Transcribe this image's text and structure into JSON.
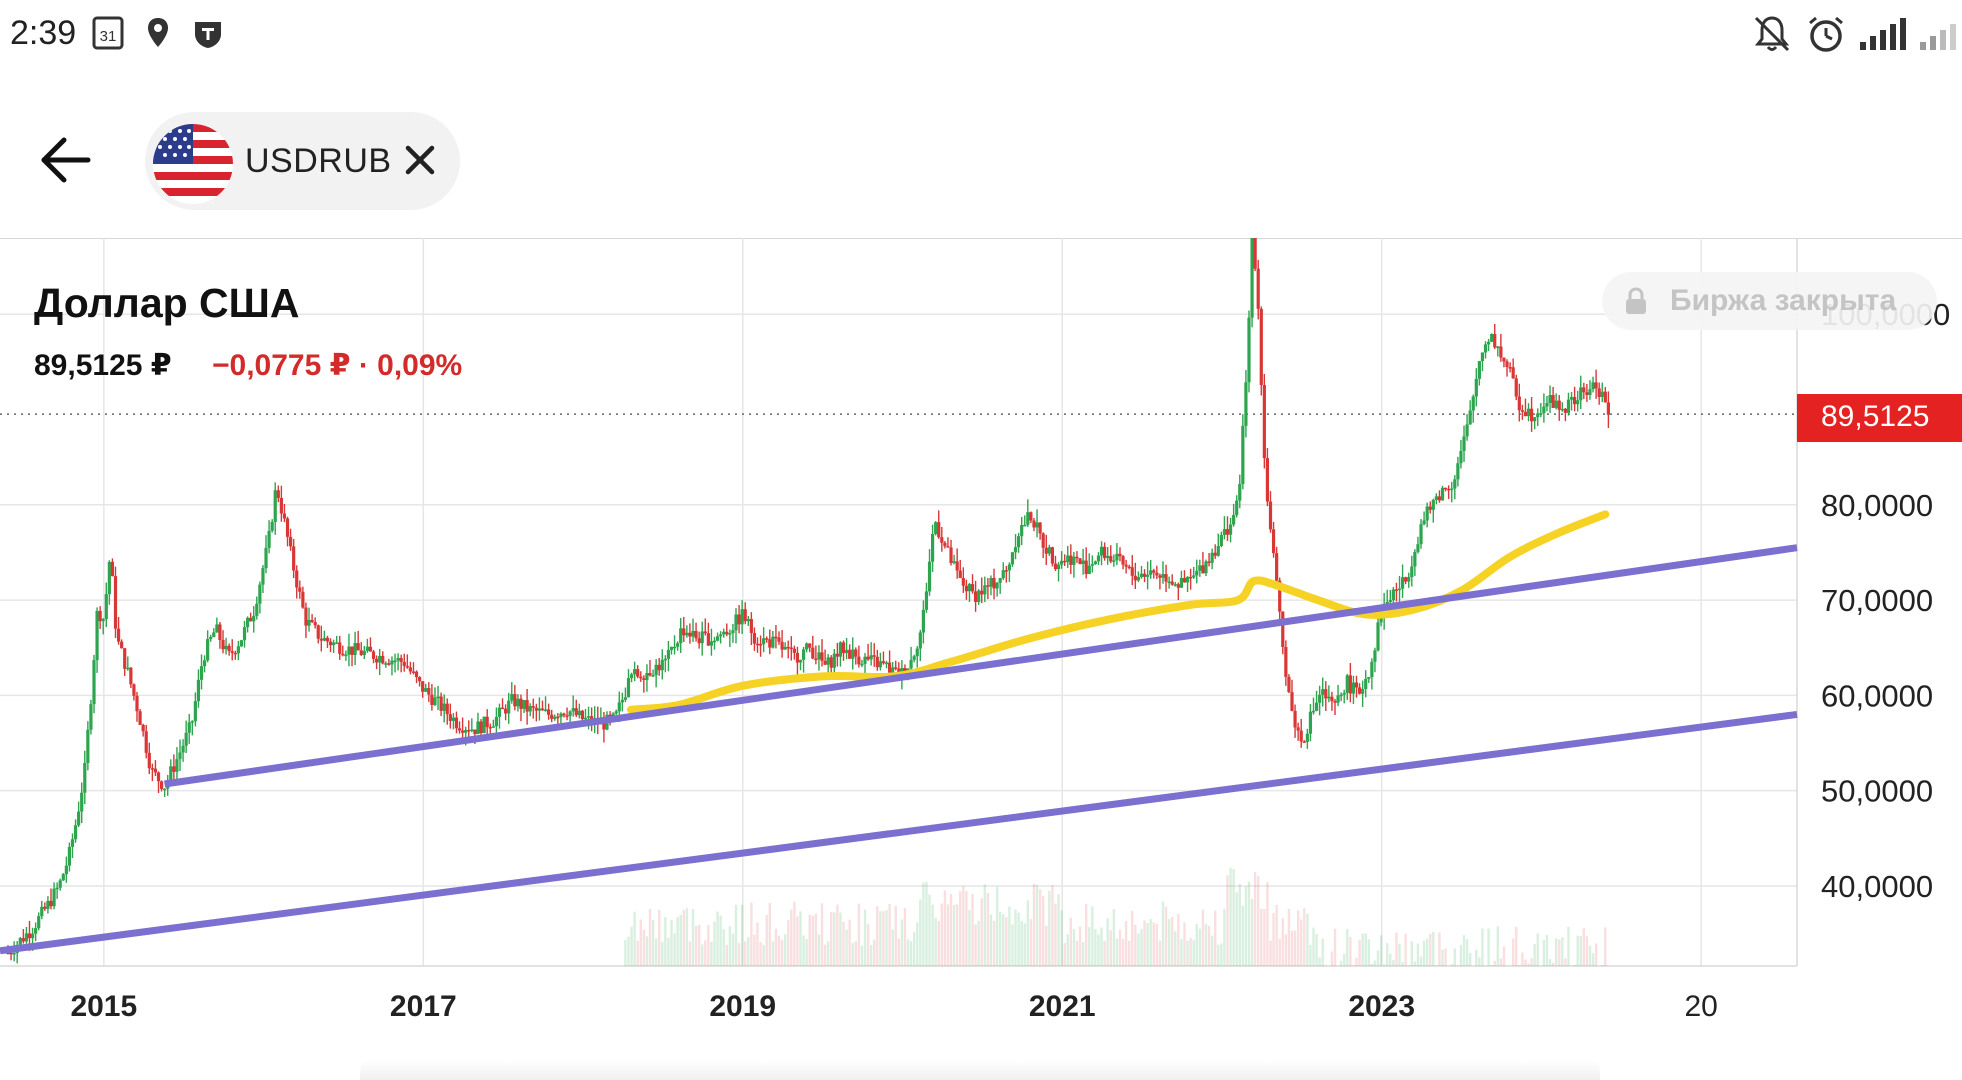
{
  "status_bar": {
    "time": "2:39",
    "calendar_day": "31",
    "icons_left": [
      "calendar-icon",
      "location-icon",
      "shield-app-icon"
    ],
    "icons_right": [
      "muted-bell-icon",
      "alarm-icon",
      "signal-icon",
      "signal-icon"
    ]
  },
  "header": {
    "back_icon": "arrow-left-icon",
    "ticker": "USDRUB",
    "flag": "us-flag-icon",
    "close_icon": "close-icon"
  },
  "quote": {
    "title": "Доллар США",
    "price": "89,5125 ₽",
    "change": "−0,0775 ₽ · 0,09%",
    "market_status": "Биржа закрыта",
    "current_price_tag": "89,5125"
  },
  "colors": {
    "up_candle": "#2da44e",
    "down_candle": "#d93636",
    "moving_average": "#f5d223",
    "trend_lines": "#7b6fd0",
    "price_tag": "#e52222",
    "change_text": "#d32a2a"
  },
  "chart_data": {
    "type": "candlestick",
    "x_axis": {
      "tick_labels": [
        "2015",
        "2017",
        "2019",
        "2021",
        "2023",
        "20"
      ],
      "xlim": [
        2014.35,
        2025.6
      ]
    },
    "y_axis": {
      "tick_labels": [
        "40,0000",
        "50,0000",
        "60,0000",
        "70,0000",
        "80,0000",
        "100,0000"
      ],
      "ylim": [
        31.6,
        108
      ],
      "position": "right"
    },
    "grid": true,
    "current_price": 89.5125,
    "price_path": [
      [
        2014.4,
        33.0
      ],
      [
        2014.55,
        35.5
      ],
      [
        2014.65,
        38.0
      ],
      [
        2014.72,
        40.0
      ],
      [
        2014.78,
        43.0
      ],
      [
        2014.83,
        47.0
      ],
      [
        2014.88,
        52.0
      ],
      [
        2014.92,
        60.0
      ],
      [
        2014.96,
        69.0
      ],
      [
        2015.0,
        68.0
      ],
      [
        2015.04,
        75.0
      ],
      [
        2015.08,
        66.0
      ],
      [
        2015.14,
        63.0
      ],
      [
        2015.22,
        58.0
      ],
      [
        2015.3,
        52.0
      ],
      [
        2015.38,
        50.5
      ],
      [
        2015.45,
        53.0
      ],
      [
        2015.55,
        57.0
      ],
      [
        2015.62,
        64.0
      ],
      [
        2015.7,
        67.0
      ],
      [
        2015.78,
        64.0
      ],
      [
        2015.86,
        66.0
      ],
      [
        2015.94,
        69.0
      ],
      [
        2016.03,
        76.0
      ],
      [
        2016.08,
        82.0
      ],
      [
        2016.12,
        79.0
      ],
      [
        2016.18,
        74.0
      ],
      [
        2016.26,
        68.0
      ],
      [
        2016.36,
        66.0
      ],
      [
        2016.5,
        65.0
      ],
      [
        2016.62,
        64.5
      ],
      [
        2016.75,
        64.0
      ],
      [
        2016.88,
        63.5
      ],
      [
        2016.98,
        61.0
      ],
      [
        2017.1,
        59.0
      ],
      [
        2017.22,
        57.0
      ],
      [
        2017.32,
        56.5
      ],
      [
        2017.45,
        57.5
      ],
      [
        2017.56,
        59.5
      ],
      [
        2017.66,
        58.5
      ],
      [
        2017.78,
        58.0
      ],
      [
        2017.9,
        58.5
      ],
      [
        2018.0,
        57.5
      ],
      [
        2018.12,
        57.0
      ],
      [
        2018.2,
        57.5
      ],
      [
        2018.3,
        62.0
      ],
      [
        2018.4,
        62.5
      ],
      [
        2018.52,
        63.5
      ],
      [
        2018.62,
        67.0
      ],
      [
        2018.72,
        66.0
      ],
      [
        2018.82,
        66.0
      ],
      [
        2018.92,
        67.0
      ],
      [
        2019.0,
        68.5
      ],
      [
        2019.08,
        66.0
      ],
      [
        2019.2,
        65.5
      ],
      [
        2019.32,
        64.0
      ],
      [
        2019.42,
        65.0
      ],
      [
        2019.52,
        63.0
      ],
      [
        2019.62,
        65.0
      ],
      [
        2019.72,
        64.0
      ],
      [
        2019.82,
        63.5
      ],
      [
        2019.9,
        63.0
      ],
      [
        2019.98,
        62.0
      ],
      [
        2020.05,
        63.5
      ],
      [
        2020.12,
        67.0
      ],
      [
        2020.2,
        78.5
      ],
      [
        2020.28,
        75.0
      ],
      [
        2020.36,
        72.0
      ],
      [
        2020.45,
        70.5
      ],
      [
        2020.55,
        71.5
      ],
      [
        2020.65,
        73.0
      ],
      [
        2020.72,
        77.0
      ],
      [
        2020.8,
        79.0
      ],
      [
        2020.88,
        76.0
      ],
      [
        2020.96,
        74.0
      ],
      [
        2021.05,
        74.5
      ],
      [
        2021.15,
        73.5
      ],
      [
        2021.25,
        75.0
      ],
      [
        2021.35,
        74.0
      ],
      [
        2021.45,
        72.5
      ],
      [
        2021.55,
        73.0
      ],
      [
        2021.65,
        72.5
      ],
      [
        2021.75,
        71.5
      ],
      [
        2021.83,
        72.5
      ],
      [
        2021.9,
        74.0
      ],
      [
        2021.98,
        76.0
      ],
      [
        2022.05,
        78.0
      ],
      [
        2022.1,
        80.0
      ],
      [
        2022.16,
        95.0
      ],
      [
        2022.19,
        110.0
      ],
      [
        2022.23,
        100.0
      ],
      [
        2022.27,
        83.0
      ],
      [
        2022.32,
        75.0
      ],
      [
        2022.38,
        65.0
      ],
      [
        2022.44,
        58.0
      ],
      [
        2022.5,
        55.0
      ],
      [
        2022.56,
        58.0
      ],
      [
        2022.62,
        60.5
      ],
      [
        2022.7,
        58.5
      ],
      [
        2022.78,
        61.5
      ],
      [
        2022.85,
        60.0
      ],
      [
        2022.93,
        63.0
      ],
      [
        2023.0,
        69.0
      ],
      [
        2023.08,
        71.0
      ],
      [
        2023.15,
        72.0
      ],
      [
        2023.25,
        78.0
      ],
      [
        2023.35,
        81.0
      ],
      [
        2023.45,
        82.5
      ],
      [
        2023.55,
        89.0
      ],
      [
        2023.62,
        96.0
      ],
      [
        2023.68,
        98.0
      ],
      [
        2023.74,
        96.0
      ],
      [
        2023.8,
        94.0
      ],
      [
        2023.86,
        90.5
      ],
      [
        2023.94,
        89.5
      ],
      [
        2024.04,
        91.0
      ],
      [
        2024.14,
        90.0
      ],
      [
        2024.24,
        91.5
      ],
      [
        2024.34,
        92.5
      ],
      [
        2024.4,
        91.0
      ],
      [
        2024.42,
        89.5
      ]
    ],
    "moving_average": [
      [
        2018.3,
        58.5
      ],
      [
        2018.6,
        59.0
      ],
      [
        2019.0,
        61.0
      ],
      [
        2019.5,
        62.0
      ],
      [
        2019.95,
        62.0
      ],
      [
        2020.3,
        63.5
      ],
      [
        2020.8,
        66.0
      ],
      [
        2021.3,
        68.0
      ],
      [
        2021.8,
        69.5
      ],
      [
        2022.1,
        70.0
      ],
      [
        2022.2,
        72.0
      ],
      [
        2022.35,
        71.5
      ],
      [
        2022.6,
        70.0
      ],
      [
        2022.9,
        68.5
      ],
      [
        2023.2,
        69.0
      ],
      [
        2023.5,
        71.0
      ],
      [
        2023.8,
        74.5
      ],
      [
        2024.1,
        77.0
      ],
      [
        2024.4,
        79.0
      ]
    ],
    "trend_lines": [
      {
        "from": [
          2015.38,
          50.7
        ],
        "to": [
          2025.6,
          75.5
        ]
      },
      {
        "from": [
          2014.35,
          33.2
        ],
        "to": [
          2025.6,
          58.0
        ]
      }
    ]
  }
}
